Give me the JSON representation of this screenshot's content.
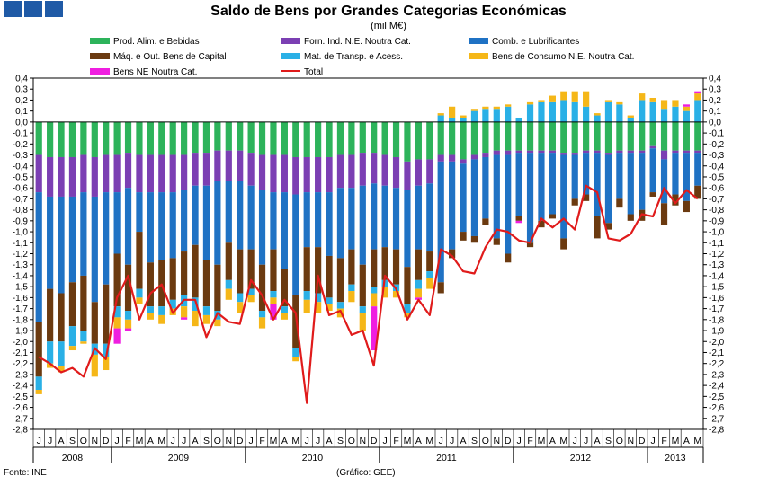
{
  "header": {
    "blocks": [
      "block-1",
      "block-2",
      "block-3"
    ],
    "block_color": "#1f5aa6"
  },
  "chart_data": {
    "type": "bar",
    "stacked": true,
    "title": "Saldo de Bens por Grandes Categorias Económicas",
    "subtitle": "(mil M€)",
    "ylim": [
      -2.8,
      0.4
    ],
    "ytick_step": 0.1,
    "ytick_labels": [
      "0,4",
      "0,3",
      "0,2",
      "0,1",
      "0,0",
      "-0,1",
      "-0,2",
      "-0,3",
      "-0,4",
      "-0,5",
      "-0,6",
      "-0,7",
      "-0,8",
      "-0,9",
      "-1,0",
      "-1,1",
      "-1,2",
      "-1,3",
      "-1,4",
      "-1,5",
      "-1,6",
      "-1,7",
      "-1,8",
      "-1,9",
      "-2,0",
      "-2,1",
      "-2,2",
      "-2,3",
      "-2,4",
      "-2,5",
      "-2,6",
      "-2,7",
      "-2,8"
    ],
    "months": [
      "J",
      "J",
      "A",
      "S",
      "O",
      "N",
      "D",
      "J",
      "F",
      "M",
      "A",
      "M",
      "J",
      "J",
      "A",
      "S",
      "O",
      "N",
      "D",
      "J",
      "F",
      "M",
      "A",
      "M",
      "J",
      "J",
      "A",
      "S",
      "O",
      "N",
      "D",
      "J",
      "F",
      "M",
      "A",
      "M",
      "J",
      "J",
      "A",
      "S",
      "O",
      "N",
      "D",
      "J",
      "F",
      "M",
      "A",
      "M",
      "J",
      "J",
      "A",
      "S",
      "O",
      "N",
      "D",
      "J",
      "F",
      "M",
      "A",
      "M"
    ],
    "years": [
      {
        "label": "2008",
        "start": 0,
        "count": 7
      },
      {
        "label": "2009",
        "start": 7,
        "count": 12
      },
      {
        "label": "2010",
        "start": 19,
        "count": 12
      },
      {
        "label": "2011",
        "start": 31,
        "count": 12
      },
      {
        "label": "2012",
        "start": 43,
        "count": 12
      },
      {
        "label": "2013",
        "start": 55,
        "count": 5
      }
    ],
    "series": [
      {
        "name": "Prod. Alim. e Bebidas",
        "color": "#2db35b",
        "values": [
          -0.3,
          -0.32,
          -0.32,
          -0.32,
          -0.3,
          -0.32,
          -0.3,
          -0.3,
          -0.28,
          -0.3,
          -0.3,
          -0.3,
          -0.3,
          -0.3,
          -0.28,
          -0.28,
          -0.26,
          -0.26,
          -0.26,
          -0.28,
          -0.3,
          -0.3,
          -0.3,
          -0.32,
          -0.32,
          -0.32,
          -0.32,
          -0.3,
          -0.3,
          -0.28,
          -0.28,
          -0.3,
          -0.32,
          -0.36,
          -0.34,
          -0.34,
          -0.3,
          -0.3,
          -0.34,
          -0.3,
          -0.28,
          -0.26,
          -0.26,
          -0.26,
          -0.26,
          -0.26,
          -0.26,
          -0.28,
          -0.28,
          -0.26,
          -0.26,
          -0.28,
          -0.26,
          -0.26,
          -0.26,
          -0.22,
          -0.26,
          -0.26,
          -0.26,
          -0.26
        ]
      },
      {
        "name": "Forn. Ind. N.E. Noutra Cat.",
        "color": "#7b3fb3",
        "values": [
          -0.34,
          -0.36,
          -0.36,
          -0.36,
          -0.34,
          -0.36,
          -0.34,
          -0.34,
          -0.32,
          -0.34,
          -0.34,
          -0.34,
          -0.34,
          -0.32,
          -0.3,
          -0.3,
          -0.28,
          -0.28,
          -0.28,
          -0.3,
          -0.32,
          -0.34,
          -0.34,
          -0.34,
          -0.32,
          -0.32,
          -0.32,
          -0.3,
          -0.3,
          -0.3,
          -0.28,
          -0.28,
          -0.28,
          -0.26,
          -0.24,
          -0.22,
          -0.06,
          -0.06,
          -0.04,
          -0.04,
          -0.04,
          -0.04,
          -0.04,
          -0.02,
          -0.02,
          -0.02,
          -0.02,
          -0.02,
          -0.02,
          -0.02,
          -0.02,
          -0.02,
          -0.02,
          -0.02,
          -0.02,
          -0.02,
          -0.08,
          -0.02,
          -0.02,
          -0.02
        ]
      },
      {
        "name": "Comb. e Lubrificantes",
        "color": "#1f72c4",
        "values": [
          -1.18,
          -0.84,
          -0.88,
          -0.78,
          -0.76,
          -0.96,
          -0.84,
          -0.56,
          -0.7,
          -0.36,
          -0.64,
          -0.62,
          -0.6,
          -0.56,
          -0.54,
          -0.68,
          -0.76,
          -0.56,
          -0.62,
          -0.58,
          -0.68,
          -0.52,
          -0.7,
          -0.92,
          -0.5,
          -0.5,
          -0.58,
          -0.64,
          -0.56,
          -0.72,
          -0.6,
          -0.56,
          -0.56,
          -0.7,
          -0.58,
          -0.62,
          -1.1,
          -0.8,
          -0.62,
          -0.7,
          -0.56,
          -0.76,
          -0.9,
          -0.58,
          -0.82,
          -0.62,
          -0.56,
          -0.76,
          -0.4,
          -0.38,
          -0.58,
          -0.62,
          -0.42,
          -0.56,
          -0.52,
          -0.4,
          -0.4,
          -0.38,
          -0.44,
          -0.3
        ]
      },
      {
        "name": "Máq. e Out. Bens de Capital",
        "color": "#6b3a10",
        "values": [
          -0.5,
          -0.48,
          -0.44,
          -0.4,
          -0.5,
          -0.38,
          -0.54,
          -0.48,
          -0.42,
          -0.52,
          -0.4,
          -0.42,
          -0.38,
          -0.4,
          -0.48,
          -0.42,
          -0.42,
          -0.34,
          -0.4,
          -0.36,
          -0.42,
          -0.38,
          -0.34,
          -0.48,
          -0.4,
          -0.42,
          -0.38,
          -0.4,
          -0.32,
          -0.38,
          -0.34,
          -0.3,
          -0.32,
          -0.34,
          -0.28,
          -0.18,
          -0.1,
          -0.08,
          -0.08,
          -0.06,
          -0.06,
          -0.06,
          -0.08,
          -0.04,
          -0.04,
          -0.06,
          -0.04,
          -0.1,
          -0.06,
          -0.06,
          -0.2,
          -0.06,
          -0.08,
          -0.06,
          -0.1,
          -0.04,
          -0.2,
          -0.1,
          -0.1,
          -0.12
        ]
      },
      {
        "name": "Mat. de Transp. e Acess.",
        "color": "#2ab0e6",
        "values": [
          -0.12,
          -0.2,
          -0.22,
          -0.18,
          -0.1,
          -0.1,
          -0.12,
          -0.1,
          -0.08,
          -0.08,
          -0.06,
          -0.08,
          -0.08,
          -0.1,
          -0.12,
          -0.08,
          -0.08,
          -0.08,
          -0.08,
          -0.06,
          -0.06,
          -0.06,
          -0.06,
          -0.08,
          -0.08,
          -0.08,
          -0.06,
          -0.06,
          -0.06,
          -0.06,
          -0.06,
          -0.06,
          -0.06,
          -0.08,
          -0.08,
          -0.06,
          0.06,
          0.04,
          0.04,
          0.1,
          0.12,
          0.12,
          0.14,
          0.04,
          0.16,
          0.18,
          0.18,
          0.2,
          0.18,
          0.14,
          0.06,
          0.18,
          0.16,
          0.04,
          0.2,
          0.18,
          0.12,
          0.14,
          0.1,
          0.2
        ]
      },
      {
        "name": "Bens de Consumo N.E. Noutra Cat.",
        "color": "#f5b718",
        "values": [
          -0.04,
          -0.04,
          -0.06,
          -0.04,
          -0.02,
          -0.2,
          -0.12,
          -0.1,
          -0.08,
          -0.06,
          -0.06,
          -0.08,
          -0.06,
          -0.1,
          -0.14,
          -0.08,
          -0.06,
          -0.1,
          -0.1,
          -0.06,
          -0.1,
          -0.06,
          -0.06,
          -0.04,
          -0.12,
          -0.1,
          -0.06,
          -0.08,
          -0.1,
          -0.16,
          -0.12,
          -0.1,
          -0.06,
          -0.04,
          -0.08,
          -0.1,
          0.02,
          0.1,
          0.02,
          0.02,
          0.02,
          0.02,
          0.02,
          0.0,
          0.02,
          0.02,
          0.06,
          0.08,
          0.1,
          0.14,
          0.02,
          0.02,
          0.02,
          0.02,
          0.06,
          0.04,
          0.08,
          0.06,
          0.04,
          0.06
        ]
      },
      {
        "name": "Bens NE Noutra Cat.",
        "color": "#ef1ee0",
        "values": [
          0.0,
          0.0,
          0.0,
          0.0,
          0.0,
          0.0,
          0.0,
          -0.14,
          -0.02,
          0.0,
          0.0,
          0.0,
          0.0,
          -0.02,
          0.0,
          0.0,
          0.0,
          0.0,
          0.0,
          0.0,
          0.0,
          -0.14,
          0.0,
          0.0,
          0.0,
          0.0,
          0.0,
          0.0,
          0.0,
          0.0,
          -0.4,
          0.0,
          0.0,
          0.0,
          -0.02,
          0.0,
          0.0,
          0.0,
          0.0,
          0.0,
          0.0,
          0.0,
          0.0,
          -0.02,
          0.0,
          0.0,
          0.0,
          0.0,
          0.0,
          0.0,
          0.0,
          0.0,
          0.0,
          0.0,
          0.0,
          0.0,
          0.0,
          0.0,
          0.02,
          0.02
        ]
      }
    ],
    "total": {
      "name": "Total",
      "color": "#e01b1b",
      "values": [
        -2.14,
        -2.2,
        -2.28,
        -2.24,
        -2.32,
        -2.06,
        -2.16,
        -1.6,
        -1.4,
        -1.8,
        -1.56,
        -1.48,
        -1.74,
        -1.62,
        -1.62,
        -1.96,
        -1.74,
        -1.82,
        -1.84,
        -1.44,
        -1.58,
        -1.8,
        -1.62,
        -1.74,
        -2.56,
        -1.4,
        -1.76,
        -1.72,
        -1.94,
        -1.9,
        -2.22,
        -1.4,
        -1.52,
        -1.8,
        -1.62,
        -1.76,
        -1.16,
        -1.22,
        -1.36,
        -1.38,
        -1.14,
        -0.98,
        -1.0,
        -1.08,
        -1.1,
        -0.88,
        -0.96,
        -0.88,
        -0.98,
        -0.58,
        -0.64,
        -1.06,
        -1.08,
        -1.02,
        -0.84,
        -0.86,
        -0.6,
        -0.74,
        -0.62,
        -0.7
      ]
    },
    "footer": {
      "source": "Fonte: INE",
      "credit": "(Gráfico: GEE)"
    }
  }
}
